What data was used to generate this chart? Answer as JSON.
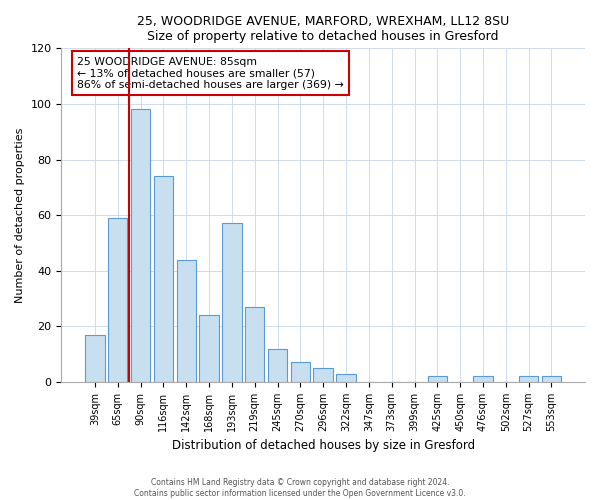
{
  "title1": "25, WOODRIDGE AVENUE, MARFORD, WREXHAM, LL12 8SU",
  "title2": "Size of property relative to detached houses in Gresford",
  "xlabel": "Distribution of detached houses by size in Gresford",
  "ylabel": "Number of detached properties",
  "bar_labels": [
    "39sqm",
    "65sqm",
    "90sqm",
    "116sqm",
    "142sqm",
    "168sqm",
    "193sqm",
    "219sqm",
    "245sqm",
    "270sqm",
    "296sqm",
    "322sqm",
    "347sqm",
    "373sqm",
    "399sqm",
    "425sqm",
    "450sqm",
    "476sqm",
    "502sqm",
    "527sqm",
    "553sqm"
  ],
  "bar_values": [
    17,
    59,
    98,
    74,
    44,
    24,
    57,
    27,
    12,
    7,
    5,
    3,
    0,
    0,
    0,
    2,
    0,
    2,
    0,
    2,
    2
  ],
  "bar_color": "#c8dff0",
  "bar_edge_color": "#5b9bd5",
  "vline_color": "#cc0000",
  "vline_pos": 1.5,
  "annotation_title": "25 WOODRIDGE AVENUE: 85sqm",
  "annotation_line1": "← 13% of detached houses are smaller (57)",
  "annotation_line2": "86% of semi-detached houses are larger (369) →",
  "annotation_box_edge": "#cc0000",
  "ylim": [
    0,
    120
  ],
  "yticks": [
    0,
    20,
    40,
    60,
    80,
    100,
    120
  ],
  "footer1": "Contains HM Land Registry data © Crown copyright and database right 2024.",
  "footer2": "Contains public sector information licensed under the Open Government Licence v3.0."
}
